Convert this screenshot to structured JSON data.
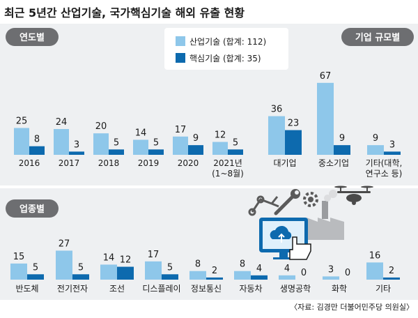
{
  "title": "최근 5년간 산업기술, 국가핵심기술 해외 유출 현황",
  "source": "〈자료: 김경만 더불어민주당 의원실〉",
  "colors": {
    "industrial": "#8ec7ea",
    "core": "#0d6aae",
    "panel": "#eef0f2",
    "tag": "#6d6e71",
    "text": "#1a1a1a"
  },
  "legend": {
    "industrial": "산업기술 (합계: 112)",
    "core": "핵심기술 (합계: 35)"
  },
  "chart_data": [
    {
      "type": "bar",
      "tag": "연도별",
      "categories": [
        "2016",
        "2017",
        "2018",
        "2019",
        "2020",
        "2021년\n(1~8월)"
      ],
      "series": [
        {
          "name": "산업기술",
          "values": [
            25,
            24,
            20,
            14,
            17,
            12
          ]
        },
        {
          "name": "핵심기술",
          "values": [
            8,
            3,
            5,
            5,
            9,
            5
          ]
        }
      ]
    },
    {
      "type": "bar",
      "tag": "기업 규모별",
      "categories": [
        "대기업",
        "중소기업",
        "기타(대학,\n연구소 등)"
      ],
      "series": [
        {
          "name": "산업기술",
          "values": [
            36,
            67,
            9
          ]
        },
        {
          "name": "핵심기술",
          "values": [
            23,
            9,
            3
          ]
        }
      ]
    },
    {
      "type": "bar",
      "tag": "업종별",
      "categories": [
        "반도체",
        "전기전자",
        "조선",
        "디스플레이",
        "정보통신",
        "자동차",
        "생명공학",
        "화학",
        "기타"
      ],
      "series": [
        {
          "name": "산업기술",
          "values": [
            15,
            27,
            14,
            17,
            8,
            8,
            4,
            3,
            16
          ]
        },
        {
          "name": "핵심기술",
          "values": [
            5,
            5,
            12,
            5,
            2,
            4,
            0,
            0,
            2
          ]
        }
      ]
    }
  ]
}
